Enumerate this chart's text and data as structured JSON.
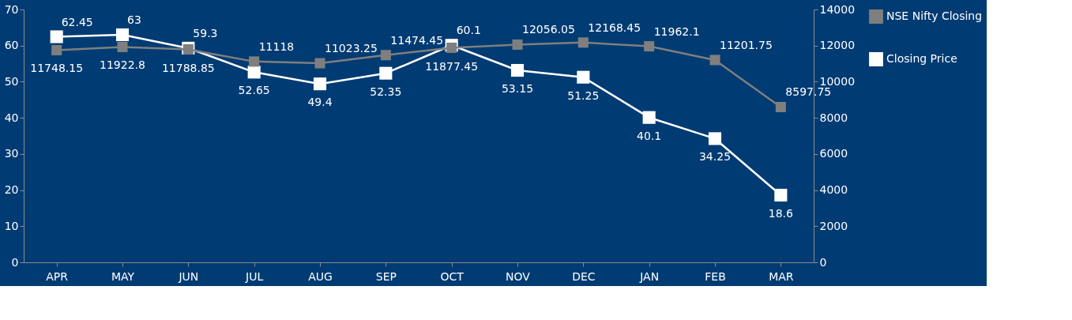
{
  "chart_data": {
    "type": "line",
    "categories": [
      "APR",
      "MAY",
      "JUN",
      "JUL",
      "AUG",
      "SEP",
      "OCT",
      "NOV",
      "DEC",
      "JAN",
      "FEB",
      "MAR"
    ],
    "series": [
      {
        "name": "NSE Nifty Closing",
        "color": "#7f7f7f",
        "axis": "y2",
        "values": [
          11748.15,
          11922.8,
          11788.85,
          11118,
          11023.25,
          11474.45,
          11877.45,
          12056.05,
          12168.45,
          11962.1,
          11201.75,
          8597.75
        ]
      },
      {
        "name": "Closing Price",
        "color": "#ffffff",
        "values": [
          62.45,
          63,
          59.3,
          52.65,
          49.4,
          52.35,
          60.1,
          53.15,
          51.25,
          40.1,
          34.25,
          18.6
        ]
      }
    ],
    "ylim": [
      0,
      70
    ],
    "yticks": [
      0,
      10,
      20,
      30,
      40,
      50,
      60,
      70
    ],
    "y2lim": [
      0,
      14000
    ],
    "y2ticks": [
      0,
      2000,
      4000,
      6000,
      8000,
      10000,
      12000,
      14000
    ],
    "data_labels": true,
    "marker": "square",
    "line_style": "solid",
    "legend": "right",
    "grid": false
  }
}
